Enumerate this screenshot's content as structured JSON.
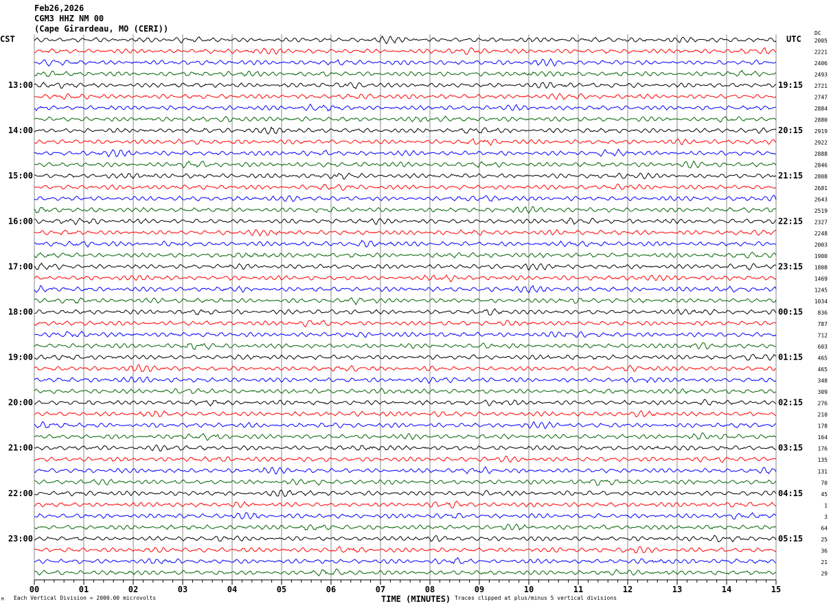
{
  "header": {
    "date": "Feb26,2026",
    "station": "CGM3 HHZ NM 00",
    "location": "(Cape Girardeau, MO (CERI))"
  },
  "chart_data": {
    "type": "line",
    "subtype": "helicorder",
    "left_timezone": "CST",
    "right_timezone": "UTC",
    "dc_header": "DC",
    "left_hour_labels": [
      "13:00",
      "14:00",
      "15:00",
      "16:00",
      "17:00",
      "18:00",
      "19:00",
      "20:00",
      "21:00",
      "22:00",
      "23:00"
    ],
    "right_hour_labels": [
      "19:15",
      "20:15",
      "21:15",
      "22:15",
      "23:15",
      "00:15",
      "01:15",
      "02:15",
      "03:15",
      "04:15",
      "05:15"
    ],
    "x_ticks": [
      "00",
      "01",
      "02",
      "03",
      "04",
      "05",
      "06",
      "07",
      "08",
      "09",
      "10",
      "11",
      "12",
      "13",
      "14",
      "15"
    ],
    "xlabel": "TIME (MINUTES)",
    "xlim": [
      0,
      15
    ],
    "trace_colors": [
      "#000000",
      "#ff0000",
      "#0000ff",
      "#006400"
    ],
    "trace_count": 48,
    "grid": true,
    "dc_offsets": [
      "2005",
      "2221",
      "2406",
      "2493",
      "2721",
      "2747",
      "2884",
      "2880",
      "2919",
      "2922",
      "2888",
      "2846",
      "2808",
      "2681",
      "2643",
      "2519",
      "2327",
      "2248",
      "2003",
      "1900",
      "1808",
      "1469",
      "1245",
      "1034",
      "836",
      "787",
      "712",
      "603",
      "465",
      "465",
      "348",
      "309",
      "276",
      "210",
      "178",
      "164",
      "176",
      "135",
      "131",
      "70",
      "45",
      "1",
      "3",
      "64",
      "25",
      "36",
      "21",
      "29"
    ]
  },
  "footer": {
    "scale_note": "Each Vertical Division = 2000.00 microvolts",
    "clip_note": "Traces clipped at plus/minus 5 vertical divisions",
    "corner_mark": "M"
  }
}
